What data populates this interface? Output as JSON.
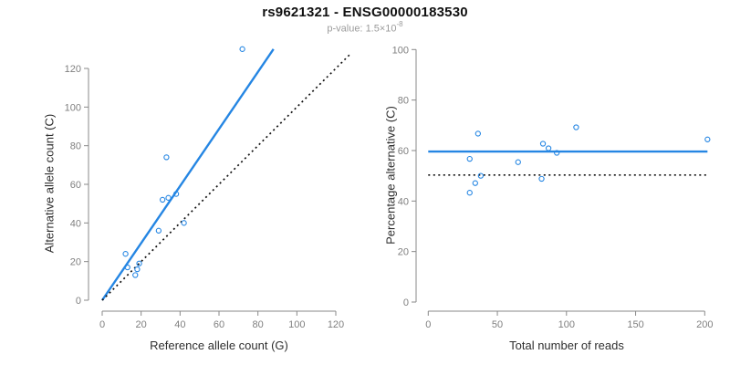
{
  "header": {
    "title": "rs9621321 - ENSG00000183530",
    "subtitle_prefix": "p-value: ",
    "p_value_mantissa": "1.5×10",
    "p_value_exponent": "-8"
  },
  "colors": {
    "accent_blue": "#2586E3",
    "dotted_black": "#111111",
    "axis_gray": "#888888",
    "tick_text_gray": "#7f7f7f",
    "title_black": "#111111",
    "subtitle_gray": "#9b9b9b"
  },
  "chart_data": [
    {
      "type": "scatter",
      "xlabel": "Reference allele count (G)",
      "ylabel": "Alternative allele count (C)",
      "xlim": [
        0,
        120
      ],
      "ylim": [
        0,
        120
      ],
      "xticks": [
        0,
        20,
        40,
        60,
        80,
        100,
        120
      ],
      "yticks": [
        0,
        20,
        40,
        60,
        80,
        100,
        120
      ],
      "points": [
        [
          72,
          130
        ],
        [
          33,
          74
        ],
        [
          38,
          55
        ],
        [
          34,
          53
        ],
        [
          31,
          52
        ],
        [
          42,
          40
        ],
        [
          29,
          36
        ],
        [
          12,
          24
        ],
        [
          19,
          19
        ],
        [
          13,
          17
        ],
        [
          18,
          16
        ],
        [
          17,
          13
        ]
      ],
      "lines": [
        {
          "name": "regression-line",
          "x1": 0,
          "y1": 0,
          "x2": 88,
          "y2": 130,
          "color": "accent",
          "style": "solid"
        },
        {
          "name": "identity-line",
          "x1": 0,
          "y1": 0,
          "x2": 128,
          "y2": 128,
          "color": "black",
          "style": "dotted"
        }
      ],
      "legend": "off",
      "grid": "off"
    },
    {
      "type": "scatter",
      "xlabel": "Total number of reads",
      "ylabel": "Percentage alternative (C)",
      "xlim": [
        0,
        200
      ],
      "ylim": [
        0,
        100
      ],
      "xticks": [
        0,
        50,
        100,
        150,
        200
      ],
      "yticks": [
        0,
        20,
        40,
        60,
        80,
        100
      ],
      "points": [
        [
          202,
          64.4
        ],
        [
          107,
          69.2
        ],
        [
          93,
          59.1
        ],
        [
          87,
          60.9
        ],
        [
          83,
          62.7
        ],
        [
          82,
          48.8
        ],
        [
          65,
          55.4
        ],
        [
          36,
          66.7
        ],
        [
          38,
          50.0
        ],
        [
          30,
          56.7
        ],
        [
          34,
          47.1
        ],
        [
          30,
          43.3
        ]
      ],
      "lines": [
        {
          "name": "mean-percentage-line",
          "x1": 0,
          "y1": 59.6,
          "x2": 202,
          "y2": 59.6,
          "color": "accent",
          "style": "solid"
        },
        {
          "name": "fifty-percent-line",
          "x1": 0,
          "y1": 50.3,
          "x2": 201,
          "y2": 50.3,
          "color": "black",
          "style": "dotted"
        }
      ],
      "legend": "off",
      "grid": "off"
    }
  ]
}
